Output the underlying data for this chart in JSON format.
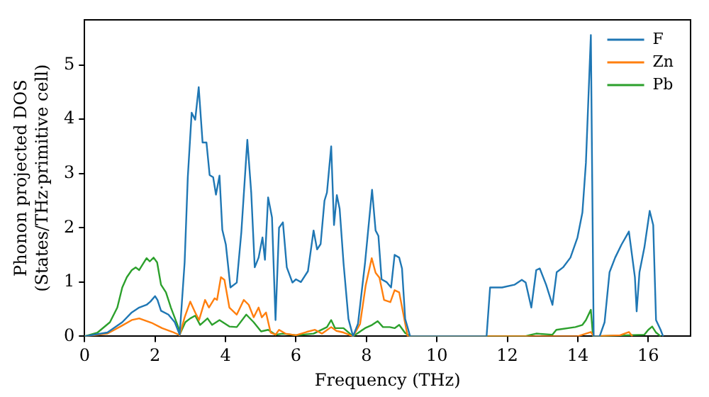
{
  "chart_data": {
    "type": "line",
    "xlabel": "Frequency (THz)",
    "ylabel": "Phonon projected DOS\n(States/THz·primitive cell)",
    "xlim": [
      0,
      17.2
    ],
    "ylim": [
      0,
      5.83
    ],
    "xticks": [
      0,
      2,
      4,
      6,
      8,
      10,
      12,
      14,
      16
    ],
    "yticks": [
      0,
      1,
      2,
      3,
      4,
      5
    ],
    "legend": "top right",
    "grid": false,
    "marker": "none",
    "line_style": "solid",
    "series": [
      {
        "name": "F",
        "color": "#1f77b4",
        "x": [
          0,
          0.65,
          1.07,
          1.34,
          1.55,
          1.76,
          1.87,
          2.0,
          2.07,
          2.17,
          2.38,
          2.56,
          2.7,
          2.84,
          2.93,
          3.04,
          3.14,
          3.24,
          3.35,
          3.46,
          3.55,
          3.65,
          3.73,
          3.83,
          3.91,
          4.01,
          4.14,
          4.32,
          4.45,
          4.62,
          4.73,
          4.83,
          4.94,
          5.05,
          5.12,
          5.21,
          5.32,
          5.42,
          5.52,
          5.63,
          5.74,
          5.9,
          6.0,
          6.14,
          6.34,
          6.5,
          6.6,
          6.7,
          6.81,
          6.88,
          7.0,
          7.08,
          7.16,
          7.24,
          7.35,
          7.49,
          7.62,
          7.76,
          7.96,
          8.16,
          8.26,
          8.34,
          8.43,
          8.57,
          8.7,
          8.8,
          8.93,
          9.01,
          9.1,
          9.24,
          11.41,
          11.51,
          11.85,
          12.2,
          12.41,
          12.52,
          12.68,
          12.82,
          12.92,
          13.1,
          13.28,
          13.4,
          13.58,
          13.79,
          13.99,
          14.13,
          14.23,
          14.37,
          14.45,
          14.62,
          14.76,
          14.9,
          15.06,
          15.24,
          15.45,
          15.62,
          15.67,
          15.75,
          15.89,
          16.04,
          16.14,
          16.22,
          16.35,
          16.42
        ],
        "values": [
          0,
          0.07,
          0.26,
          0.44,
          0.53,
          0.58,
          0.64,
          0.74,
          0.67,
          0.47,
          0.4,
          0.26,
          0.03,
          1.36,
          2.93,
          4.12,
          3.99,
          4.59,
          3.57,
          3.57,
          2.97,
          2.93,
          2.61,
          2.96,
          1.96,
          1.69,
          0.9,
          0.99,
          1.92,
          3.62,
          2.65,
          1.27,
          1.45,
          1.82,
          1.41,
          2.56,
          2.19,
          0.3,
          2.0,
          2.1,
          1.27,
          0.99,
          1.05,
          1.0,
          1.2,
          1.95,
          1.6,
          1.7,
          2.5,
          2.65,
          3.5,
          2.05,
          2.6,
          2.35,
          1.35,
          0.32,
          0,
          0.23,
          1.35,
          2.7,
          1.95,
          1.85,
          1.05,
          1.0,
          0.9,
          1.5,
          1.45,
          1.25,
          0.32,
          0,
          0,
          0.9,
          0.9,
          0.95,
          1.04,
          0.99,
          0.53,
          1.22,
          1.25,
          0.95,
          0.58,
          1.18,
          1.27,
          1.45,
          1.82,
          2.28,
          3.2,
          5.55,
          0,
          0,
          0.26,
          1.18,
          1.45,
          1.69,
          1.93,
          1.09,
          0.46,
          1.18,
          1.64,
          2.31,
          2.05,
          0.3,
          0.12,
          0
        ]
      },
      {
        "name": "Zn",
        "color": "#ff7f0e",
        "x": [
          0,
          0.65,
          1.07,
          1.34,
          1.55,
          1.9,
          2.2,
          2.5,
          2.7,
          2.84,
          3.0,
          3.14,
          3.25,
          3.42,
          3.53,
          3.69,
          3.76,
          3.87,
          3.97,
          4.11,
          4.32,
          4.52,
          4.66,
          4.8,
          4.94,
          5.03,
          5.15,
          5.28,
          5.42,
          5.52,
          5.7,
          6.0,
          6.3,
          6.54,
          6.74,
          7.0,
          7.15,
          7.35,
          7.62,
          7.82,
          7.98,
          8.15,
          8.26,
          8.37,
          8.5,
          8.68,
          8.8,
          8.93,
          9.04,
          9.17,
          14.0,
          14.23,
          14.37,
          14.45,
          15.2,
          15.45,
          15.55
        ],
        "values": [
          0,
          0.05,
          0.2,
          0.3,
          0.33,
          0.25,
          0.15,
          0.08,
          0.02,
          0.35,
          0.64,
          0.44,
          0.3,
          0.67,
          0.53,
          0.7,
          0.67,
          1.09,
          1.04,
          0.53,
          0.4,
          0.67,
          0.58,
          0.35,
          0.53,
          0.35,
          0.44,
          0.07,
          0.03,
          0.12,
          0.05,
          0.02,
          0.08,
          0.12,
          0.05,
          0.17,
          0.1,
          0.07,
          0,
          0.23,
          0.94,
          1.44,
          1.17,
          1.08,
          0.67,
          0.63,
          0.85,
          0.81,
          0.44,
          0,
          0,
          0.05,
          0.08,
          0,
          0.02,
          0.08,
          0
        ]
      },
      {
        "name": "Pb",
        "color": "#2ca02c",
        "x": [
          0,
          0.37,
          0.72,
          0.93,
          1.07,
          1.2,
          1.34,
          1.45,
          1.55,
          1.76,
          1.85,
          1.96,
          2.06,
          2.17,
          2.31,
          2.45,
          2.66,
          2.72,
          2.86,
          3.0,
          3.14,
          3.28,
          3.49,
          3.62,
          3.83,
          4.11,
          4.32,
          4.59,
          4.8,
          5.01,
          5.21,
          5.42,
          5.63,
          6.0,
          6.5,
          6.88,
          7.0,
          7.11,
          7.35,
          7.62,
          7.96,
          8.16,
          8.32,
          8.47,
          8.66,
          8.8,
          8.93,
          9.1,
          9.24,
          12.5,
          12.68,
          12.82,
          13.28,
          13.39,
          13.93,
          14.13,
          14.23,
          14.37,
          14.43,
          15.89,
          16.0,
          16.11,
          16.22,
          16.35
        ],
        "values": [
          0,
          0.07,
          0.26,
          0.53,
          0.9,
          1.09,
          1.22,
          1.27,
          1.22,
          1.44,
          1.38,
          1.45,
          1.36,
          0.95,
          0.81,
          0.53,
          0.17,
          0.06,
          0.26,
          0.33,
          0.38,
          0.21,
          0.33,
          0.21,
          0.3,
          0.18,
          0.17,
          0.4,
          0.26,
          0.09,
          0.12,
          0.03,
          0.05,
          0.02,
          0.05,
          0.17,
          0.3,
          0.15,
          0.15,
          0,
          0.15,
          0.21,
          0.28,
          0.17,
          0.17,
          0.15,
          0.21,
          0.06,
          0,
          0,
          0.03,
          0.05,
          0.03,
          0.12,
          0.17,
          0.21,
          0.3,
          0.49,
          0,
          0.03,
          0.12,
          0.18,
          0.07,
          0
        ]
      }
    ]
  }
}
